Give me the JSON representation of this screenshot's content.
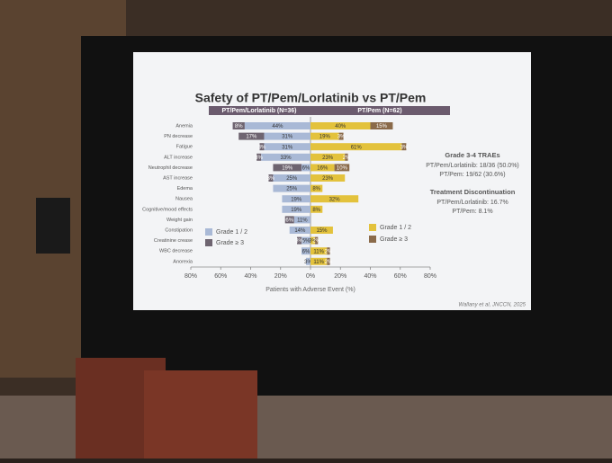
{
  "chart_data": {
    "type": "butterfly",
    "title": "Safety of PT/Pem/Lorlatinib vs PT/Pem",
    "panel_labels": [
      "PT/Pem/Lorlatinib (N=36)",
      "PT/Pem (N=62)"
    ],
    "categories": [
      "Anemia",
      "PN decrease",
      "Fatigue",
      "ALT increase",
      "Neutrophil decrease",
      "AST increase",
      "Edema",
      "Nausea",
      "Cognitive/mood effects",
      "Weight gain",
      "Constipation",
      "Creatinine crease",
      "WBC decrease",
      "Anorexia"
    ],
    "series": [
      {
        "name": "Grade 1 / 2",
        "side": "left",
        "color": "#a9b9d6",
        "values": [
          44,
          31,
          31,
          33,
          6,
          25,
          25,
          19,
          19,
          11,
          14,
          6,
          6,
          3
        ],
        "value_labels": [
          "44%",
          "31%",
          "31%",
          "33%",
          "6%",
          "25%",
          "25%",
          "19%",
          "19%",
          "11%",
          "14%",
          "6%",
          "6%",
          "3%"
        ]
      },
      {
        "name": "Grade ≥ 3",
        "side": "left",
        "color": "#6e6470",
        "values": [
          8,
          17,
          3,
          3,
          19,
          3,
          null,
          null,
          null,
          6,
          null,
          3,
          null,
          null
        ],
        "value_labels": [
          "8%",
          "17%",
          "3%",
          "3%",
          "19%",
          "3%",
          null,
          null,
          null,
          "6%",
          null,
          "3%",
          null,
          null
        ]
      },
      {
        "name": "Grade 1 / 2",
        "side": "right",
        "color": "#e3c23c",
        "values": [
          40,
          19,
          61,
          23,
          16,
          23,
          8,
          32,
          8,
          null,
          15,
          3,
          11,
          11
        ],
        "value_labels": [
          "40%",
          "19%",
          "61%",
          "23%",
          "16%",
          "23%",
          "8%",
          "32%",
          "8%",
          null,
          "15%",
          "3%",
          "11%",
          "11%"
        ]
      },
      {
        "name": "Grade ≥ 3",
        "side": "right",
        "color": "#8a6a4a",
        "values": [
          15,
          3,
          3,
          2,
          10,
          null,
          null,
          null,
          null,
          null,
          null,
          2,
          2,
          2
        ],
        "value_labels": [
          "15%",
          "3%",
          "3%",
          "2%",
          "10%",
          null,
          null,
          null,
          null,
          null,
          null,
          "2%",
          "2%",
          "2%"
        ]
      }
    ],
    "xlim": [
      -80,
      80
    ],
    "xticks": [
      {
        "value": -80,
        "label": "80%"
      },
      {
        "value": -60,
        "label": "60%"
      },
      {
        "value": -40,
        "label": "40%"
      },
      {
        "value": -20,
        "label": "20%"
      },
      {
        "value": 0,
        "label": "0%"
      },
      {
        "value": 20,
        "label": "20%"
      },
      {
        "value": 40,
        "label": "40%"
      },
      {
        "value": 60,
        "label": "60%"
      },
      {
        "value": 80,
        "label": "80%"
      }
    ],
    "xlabel": "Patients with Adverse Event (%)",
    "annotations": [
      "Grade 3-4 TRAEs",
      "PT/Pem/Lorlatinib: 18/36 (50.0%)",
      "PT/Pem: 19/62 (30.6%)",
      "Treatment Discontinuation",
      "PT/Pem/Lorlatinib: 16.7%",
      "PT/Pem: 8.1%"
    ],
    "source": "Wallany et al, JNCCN, 2025"
  }
}
